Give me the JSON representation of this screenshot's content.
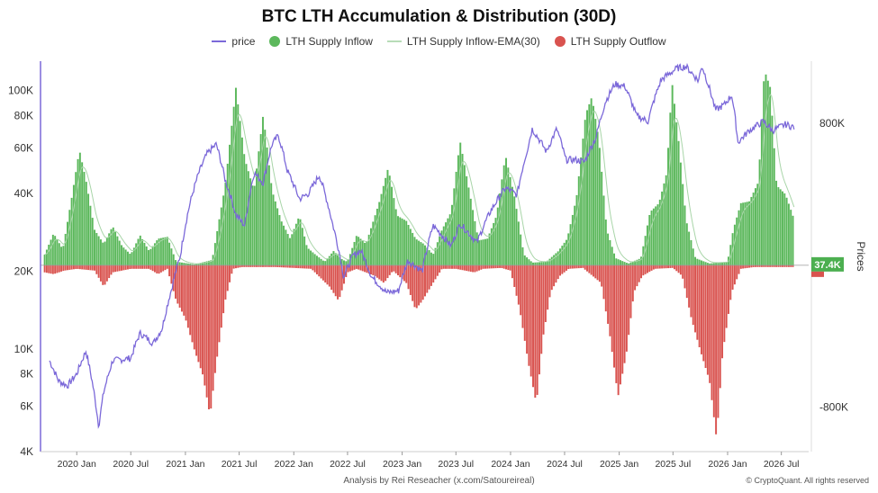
{
  "chart_data": {
    "type": "bar",
    "title": "BTC LTH Accumulation & Distribution (30D)",
    "legend": [
      {
        "name": "price",
        "color": "#7b68d9",
        "kind": "line"
      },
      {
        "name": "LTH Supply Inflow",
        "color": "#5cb85c",
        "kind": "dot"
      },
      {
        "name": "LTH Supply Inflow-EMA(30)",
        "color": "#b8dcb8",
        "kind": "line"
      },
      {
        "name": "LTH Supply Outflow",
        "color": "#d9534f",
        "kind": "dot"
      }
    ],
    "x_ticks": [
      "2020 Jan",
      "2020 Jul",
      "2021 Jan",
      "2021 Jul",
      "2022 Jan",
      "2022 Jul",
      "2023 Jan",
      "2023 Jul",
      "2024 Jan",
      "2024 Jul",
      "2025 Jan",
      "2025 Jul",
      "2026 Jan",
      "2026 Jul"
    ],
    "y_left_ticks": [
      "100K",
      "80K",
      "60K",
      "40K",
      "20K",
      "10K",
      "8K",
      "6K",
      "4K"
    ],
    "y_right_ticks": [
      "800K",
      "-800K"
    ],
    "y_right_label": "Prices",
    "y_left_scale": "log",
    "y_left_range": [
      4000,
      130000
    ],
    "y_right_range": [
      -1050000,
      1150000
    ],
    "current_value_label": "37.4K",
    "x_range": [
      "2019-09",
      "2026-10"
    ],
    "price_series": [
      {
        "d": "2019-10-01",
        "v": 9000
      },
      {
        "d": "2019-11-01",
        "v": 7500
      },
      {
        "d": "2019-12-01",
        "v": 7200
      },
      {
        "d": "2020-01-01",
        "v": 8000
      },
      {
        "d": "2020-02-01",
        "v": 9800
      },
      {
        "d": "2020-03-15",
        "v": 5000
      },
      {
        "d": "2020-04-01",
        "v": 6800
      },
      {
        "d": "2020-05-01",
        "v": 9000
      },
      {
        "d": "2020-07-01",
        "v": 9200
      },
      {
        "d": "2020-08-01",
        "v": 11500
      },
      {
        "d": "2020-09-15",
        "v": 10500
      },
      {
        "d": "2020-10-15",
        "v": 12000
      },
      {
        "d": "2020-11-15",
        "v": 17000
      },
      {
        "d": "2020-12-15",
        "v": 23000
      },
      {
        "d": "2021-01-15",
        "v": 36000
      },
      {
        "d": "2021-02-15",
        "v": 48000
      },
      {
        "d": "2021-03-15",
        "v": 57000
      },
      {
        "d": "2021-04-15",
        "v": 62000
      },
      {
        "d": "2021-05-15",
        "v": 45000
      },
      {
        "d": "2021-06-20",
        "v": 33000
      },
      {
        "d": "2021-07-20",
        "v": 30000
      },
      {
        "d": "2021-08-20",
        "v": 48000
      },
      {
        "d": "2021-09-20",
        "v": 44000
      },
      {
        "d": "2021-10-20",
        "v": 62000
      },
      {
        "d": "2021-11-10",
        "v": 67000
      },
      {
        "d": "2021-12-10",
        "v": 49000
      },
      {
        "d": "2022-01-20",
        "v": 38000
      },
      {
        "d": "2022-02-20",
        "v": 40000
      },
      {
        "d": "2022-03-28",
        "v": 47000
      },
      {
        "d": "2022-05-10",
        "v": 31000
      },
      {
        "d": "2022-06-18",
        "v": 19000
      },
      {
        "d": "2022-07-20",
        "v": 23000
      },
      {
        "d": "2022-08-15",
        "v": 24000
      },
      {
        "d": "2022-09-20",
        "v": 19000
      },
      {
        "d": "2022-11-10",
        "v": 16500
      },
      {
        "d": "2022-12-20",
        "v": 16800
      },
      {
        "d": "2023-01-20",
        "v": 22000
      },
      {
        "d": "2023-03-10",
        "v": 20000
      },
      {
        "d": "2023-04-15",
        "v": 30000
      },
      {
        "d": "2023-06-15",
        "v": 25000
      },
      {
        "d": "2023-07-15",
        "v": 30500
      },
      {
        "d": "2023-09-10",
        "v": 25800
      },
      {
        "d": "2023-10-25",
        "v": 34000
      },
      {
        "d": "2023-12-15",
        "v": 42000
      },
      {
        "d": "2024-01-23",
        "v": 39500
      },
      {
        "d": "2024-02-28",
        "v": 60000
      },
      {
        "d": "2024-03-14",
        "v": 71000
      },
      {
        "d": "2024-05-01",
        "v": 58000
      },
      {
        "d": "2024-06-05",
        "v": 71000
      },
      {
        "d": "2024-07-05",
        "v": 54000
      },
      {
        "d": "2024-08-05",
        "v": 54000
      },
      {
        "d": "2024-09-06",
        "v": 53000
      },
      {
        "d": "2024-10-15",
        "v": 66000
      },
      {
        "d": "2024-11-15",
        "v": 90000
      },
      {
        "d": "2024-12-17",
        "v": 106000
      },
      {
        "d": "2025-01-20",
        "v": 104000
      },
      {
        "d": "2025-02-28",
        "v": 80000
      },
      {
        "d": "2025-04-08",
        "v": 76000
      },
      {
        "d": "2025-05-22",
        "v": 110000
      },
      {
        "d": "2025-07-14",
        "v": 122000
      },
      {
        "d": "2025-08-14",
        "v": 124000
      },
      {
        "d": "2025-09-25",
        "v": 109000
      },
      {
        "d": "2025-10-06",
        "v": 125000
      },
      {
        "d": "2025-11-21",
        "v": 84000
      },
      {
        "d": "2025-12-20",
        "v": 88000
      },
      {
        "d": "2026-01-15",
        "v": 96000
      },
      {
        "d": "2026-02-05",
        "v": 63000
      },
      {
        "d": "2026-03-15",
        "v": 70000
      },
      {
        "d": "2026-05-01",
        "v": 76000
      },
      {
        "d": "2026-06-01",
        "v": 70000
      },
      {
        "d": "2026-07-15",
        "v": 74000
      },
      {
        "d": "2026-08-15",
        "v": 72000
      }
    ],
    "inflow_series": [
      {
        "d": "2019-09-15",
        "v": 60000
      },
      {
        "d": "2019-10-15",
        "v": 180000
      },
      {
        "d": "2019-11-15",
        "v": 90000
      },
      {
        "d": "2019-12-15",
        "v": 380000
      },
      {
        "d": "2020-01-10",
        "v": 650000
      },
      {
        "d": "2020-02-01",
        "v": 480000
      },
      {
        "d": "2020-03-01",
        "v": 200000
      },
      {
        "d": "2020-04-01",
        "v": 120000
      },
      {
        "d": "2020-05-01",
        "v": 220000
      },
      {
        "d": "2020-06-01",
        "v": 110000
      },
      {
        "d": "2020-07-01",
        "v": 60000
      },
      {
        "d": "2020-08-01",
        "v": 170000
      },
      {
        "d": "2020-09-01",
        "v": 80000
      },
      {
        "d": "2020-10-01",
        "v": 150000
      },
      {
        "d": "2020-11-01",
        "v": 160000
      },
      {
        "d": "2020-12-01",
        "v": 20000
      },
      {
        "d": "2021-02-01",
        "v": 5000
      },
      {
        "d": "2021-04-01",
        "v": 30000
      },
      {
        "d": "2021-05-15",
        "v": 450000
      },
      {
        "d": "2021-06-20",
        "v": 1000000
      },
      {
        "d": "2021-07-20",
        "v": 600000
      },
      {
        "d": "2021-08-20",
        "v": 420000
      },
      {
        "d": "2021-09-20",
        "v": 850000
      },
      {
        "d": "2021-10-20",
        "v": 420000
      },
      {
        "d": "2021-11-20",
        "v": 250000
      },
      {
        "d": "2021-12-20",
        "v": 150000
      },
      {
        "d": "2022-01-20",
        "v": 280000
      },
      {
        "d": "2022-02-15",
        "v": 100000
      },
      {
        "d": "2022-03-15",
        "v": 60000
      },
      {
        "d": "2022-04-15",
        "v": 20000
      },
      {
        "d": "2022-05-15",
        "v": 80000
      },
      {
        "d": "2022-06-15",
        "v": 30000
      },
      {
        "d": "2022-07-01",
        "v": 20000
      },
      {
        "d": "2022-08-01",
        "v": 170000
      },
      {
        "d": "2022-09-01",
        "v": 120000
      },
      {
        "d": "2022-10-15",
        "v": 350000
      },
      {
        "d": "2022-11-15",
        "v": 550000
      },
      {
        "d": "2022-12-15",
        "v": 280000
      },
      {
        "d": "2023-01-15",
        "v": 250000
      },
      {
        "d": "2023-02-15",
        "v": 150000
      },
      {
        "d": "2023-03-15",
        "v": 120000
      },
      {
        "d": "2023-04-15",
        "v": 60000
      },
      {
        "d": "2023-05-15",
        "v": 200000
      },
      {
        "d": "2023-06-15",
        "v": 300000
      },
      {
        "d": "2023-07-15",
        "v": 700000
      },
      {
        "d": "2023-08-15",
        "v": 420000
      },
      {
        "d": "2023-09-15",
        "v": 140000
      },
      {
        "d": "2023-10-15",
        "v": 150000
      },
      {
        "d": "2023-11-15",
        "v": 280000
      },
      {
        "d": "2023-12-15",
        "v": 620000
      },
      {
        "d": "2024-01-15",
        "v": 380000
      },
      {
        "d": "2024-02-15",
        "v": 60000
      },
      {
        "d": "2024-03-15",
        "v": 15000
      },
      {
        "d": "2024-05-01",
        "v": 20000
      },
      {
        "d": "2024-06-10",
        "v": 80000
      },
      {
        "d": "2024-07-10",
        "v": 150000
      },
      {
        "d": "2024-08-10",
        "v": 380000
      },
      {
        "d": "2024-09-10",
        "v": 850000
      },
      {
        "d": "2024-10-01",
        "v": 950000
      },
      {
        "d": "2024-10-25",
        "v": 700000
      },
      {
        "d": "2024-11-20",
        "v": 200000
      },
      {
        "d": "2024-12-20",
        "v": 40000
      },
      {
        "d": "2025-02-01",
        "v": 10000
      },
      {
        "d": "2025-03-15",
        "v": 40000
      },
      {
        "d": "2025-04-15",
        "v": 300000
      },
      {
        "d": "2025-05-15",
        "v": 350000
      },
      {
        "d": "2025-06-10",
        "v": 520000
      },
      {
        "d": "2025-06-28",
        "v": 1030000
      },
      {
        "d": "2025-07-20",
        "v": 700000
      },
      {
        "d": "2025-08-15",
        "v": 250000
      },
      {
        "d": "2025-09-15",
        "v": 40000
      },
      {
        "d": "2025-11-01",
        "v": 10000
      },
      {
        "d": "2026-01-01",
        "v": 20000
      },
      {
        "d": "2026-01-20",
        "v": 200000
      },
      {
        "d": "2026-02-15",
        "v": 350000
      },
      {
        "d": "2026-03-15",
        "v": 360000
      },
      {
        "d": "2026-04-15",
        "v": 470000
      },
      {
        "d": "2026-05-05",
        "v": 1100000
      },
      {
        "d": "2026-05-25",
        "v": 1000000
      },
      {
        "d": "2026-06-15",
        "v": 450000
      },
      {
        "d": "2026-07-15",
        "v": 400000
      },
      {
        "d": "2026-08-15",
        "v": 250000
      }
    ],
    "outflow_series": [
      {
        "d": "2019-09-15",
        "v": -40000
      },
      {
        "d": "2019-10-15",
        "v": -50000
      },
      {
        "d": "2019-11-20",
        "v": -30000
      },
      {
        "d": "2020-01-01",
        "v": -20000
      },
      {
        "d": "2020-03-01",
        "v": -30000
      },
      {
        "d": "2020-04-01",
        "v": -120000
      },
      {
        "d": "2020-05-01",
        "v": -40000
      },
      {
        "d": "2020-06-01",
        "v": -30000
      },
      {
        "d": "2020-07-01",
        "v": -20000
      },
      {
        "d": "2020-09-01",
        "v": -20000
      },
      {
        "d": "2020-10-01",
        "v": -50000
      },
      {
        "d": "2020-11-01",
        "v": -20000
      },
      {
        "d": "2020-12-01",
        "v": -200000
      },
      {
        "d": "2021-01-01",
        "v": -300000
      },
      {
        "d": "2021-02-01",
        "v": -480000
      },
      {
        "d": "2021-03-01",
        "v": -620000
      },
      {
        "d": "2021-03-25",
        "v": -850000
      },
      {
        "d": "2021-04-15",
        "v": -550000
      },
      {
        "d": "2021-05-15",
        "v": -200000
      },
      {
        "d": "2021-06-10",
        "v": -20000
      },
      {
        "d": "2021-07-10",
        "v": -10000
      },
      {
        "d": "2021-11-01",
        "v": -10000
      },
      {
        "d": "2022-01-01",
        "v": -15000
      },
      {
        "d": "2022-03-01",
        "v": -20000
      },
      {
        "d": "2022-05-01",
        "v": -120000
      },
      {
        "d": "2022-06-01",
        "v": -200000
      },
      {
        "d": "2022-07-01",
        "v": -40000
      },
      {
        "d": "2022-08-01",
        "v": -20000
      },
      {
        "d": "2022-10-01",
        "v": -60000
      },
      {
        "d": "2022-11-01",
        "v": -100000
      },
      {
        "d": "2022-12-01",
        "v": -30000
      },
      {
        "d": "2023-01-15",
        "v": -100000
      },
      {
        "d": "2023-02-15",
        "v": -250000
      },
      {
        "d": "2023-03-10",
        "v": -200000
      },
      {
        "d": "2023-04-15",
        "v": -100000
      },
      {
        "d": "2023-05-15",
        "v": -20000
      },
      {
        "d": "2023-07-01",
        "v": -20000
      },
      {
        "d": "2023-09-01",
        "v": -40000
      },
      {
        "d": "2023-10-01",
        "v": -20000
      },
      {
        "d": "2023-12-01",
        "v": -15000
      },
      {
        "d": "2024-01-01",
        "v": -30000
      },
      {
        "d": "2024-02-01",
        "v": -250000
      },
      {
        "d": "2024-03-01",
        "v": -550000
      },
      {
        "d": "2024-03-28",
        "v": -780000
      },
      {
        "d": "2024-04-20",
        "v": -400000
      },
      {
        "d": "2024-05-15",
        "v": -150000
      },
      {
        "d": "2024-06-15",
        "v": -60000
      },
      {
        "d": "2024-07-15",
        "v": -20000
      },
      {
        "d": "2024-09-01",
        "v": -15000
      },
      {
        "d": "2024-11-01",
        "v": -100000
      },
      {
        "d": "2024-12-01",
        "v": -400000
      },
      {
        "d": "2024-12-28",
        "v": -740000
      },
      {
        "d": "2025-01-25",
        "v": -500000
      },
      {
        "d": "2025-02-20",
        "v": -150000
      },
      {
        "d": "2025-03-20",
        "v": -60000
      },
      {
        "d": "2025-05-01",
        "v": -20000
      },
      {
        "d": "2025-07-01",
        "v": -15000
      },
      {
        "d": "2025-08-01",
        "v": -60000
      },
      {
        "d": "2025-09-01",
        "v": -300000
      },
      {
        "d": "2025-10-01",
        "v": -480000
      },
      {
        "d": "2025-11-01",
        "v": -650000
      },
      {
        "d": "2025-11-25",
        "v": -980000
      },
      {
        "d": "2025-12-15",
        "v": -500000
      },
      {
        "d": "2026-01-15",
        "v": -150000
      },
      {
        "d": "2026-02-15",
        "v": -20000
      },
      {
        "d": "2026-04-01",
        "v": -10000
      },
      {
        "d": "2026-08-15",
        "v": -10000
      }
    ],
    "grid": false
  },
  "footer": "Analysis by Rei Reseacher (x.com/Satoureireal)",
  "copyright": "© CryptoQuant. All rights reserved"
}
